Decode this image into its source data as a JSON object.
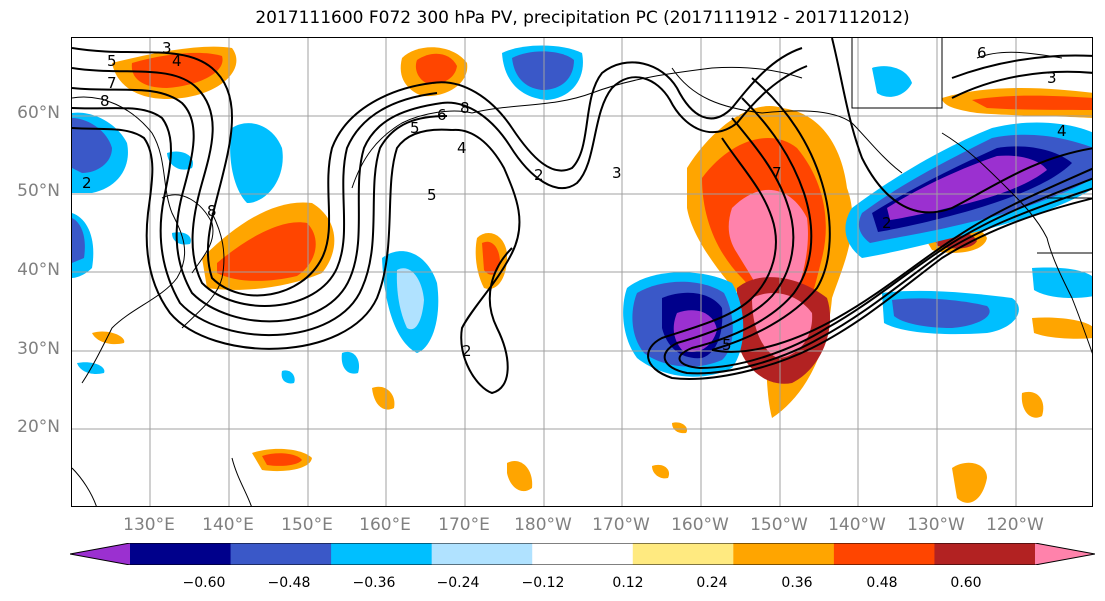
{
  "title": "2017111600 F072 300 hPa PV, precipitation PC (2017111912 - 2017112012)",
  "lat_labels": [
    "60°N",
    "50°N",
    "40°N",
    "30°N",
    "20°N"
  ],
  "lon_labels": [
    "130°E",
    "140°E",
    "150°E",
    "160°E",
    "170°E",
    "180°W",
    "170°W",
    "160°W",
    "150°W",
    "140°W",
    "130°W",
    "120°W"
  ],
  "contour_labels": [
    "3",
    "4",
    "5",
    "7",
    "8",
    "8",
    "6",
    "5",
    "4",
    "8",
    "2",
    "2",
    "5",
    "6",
    "3",
    "7",
    "4",
    "2",
    "5",
    "3",
    "2"
  ],
  "colorbar": {
    "colors": [
      "#9b30d0",
      "#00008b",
      "#3a58c8",
      "#00bfff",
      "#b0e2ff",
      "#ffffff",
      "#ffea80",
      "#ffa500",
      "#ff4500",
      "#b22222",
      "#ff82ab"
    ],
    "ticks": [
      "−0.60",
      "−0.48",
      "−0.36",
      "−0.24",
      "−0.12",
      "0.12",
      "0.24",
      "0.36",
      "0.48",
      "0.60"
    ]
  }
}
